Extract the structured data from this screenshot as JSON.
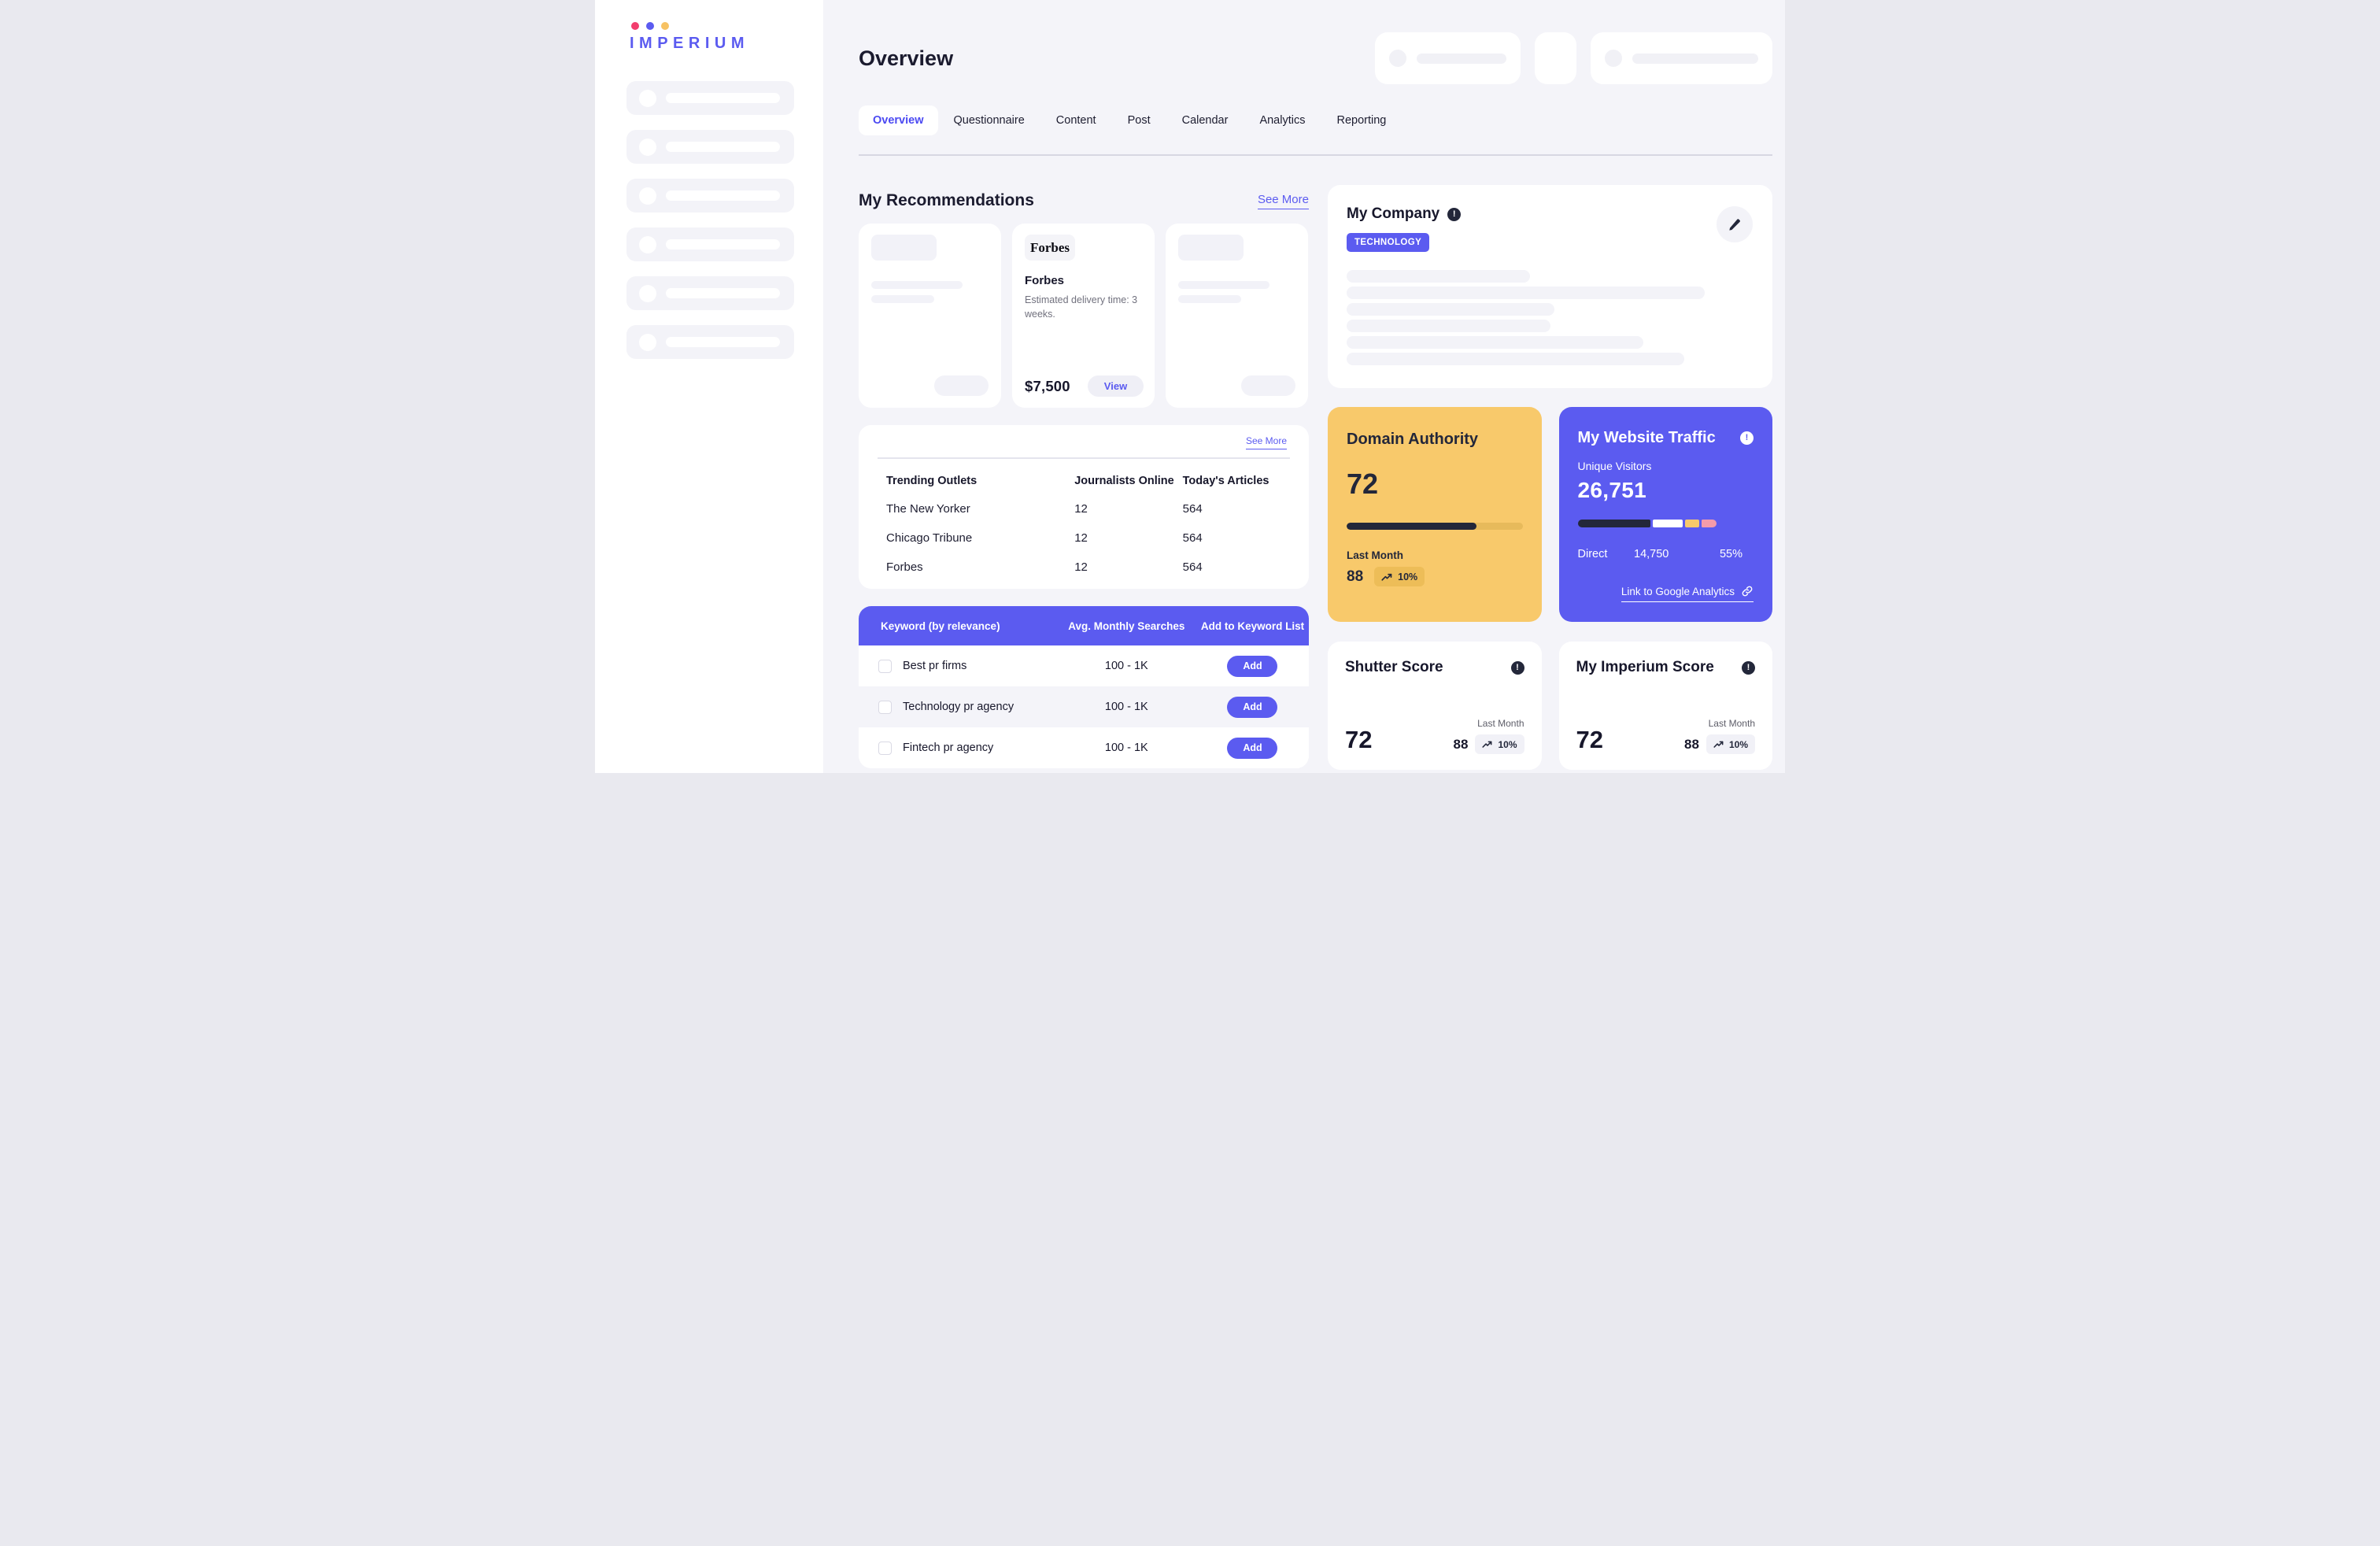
{
  "brand": {
    "name": "IMPERIUM"
  },
  "page": {
    "title": "Overview"
  },
  "tabs": [
    {
      "label": "Overview"
    },
    {
      "label": "Questionnaire"
    },
    {
      "label": "Content"
    },
    {
      "label": "Post"
    },
    {
      "label": "Calendar"
    },
    {
      "label": "Analytics"
    },
    {
      "label": "Reporting"
    }
  ],
  "icons": {
    "info": "!"
  },
  "recommendations": {
    "title": "My Recommendations",
    "see_more": "See More",
    "forbes": {
      "logo": "Forbes",
      "name": "Forbes",
      "description": "Estimated delivery time: 3 weeks.",
      "price": "$7,500",
      "view": "View"
    }
  },
  "trending": {
    "see_more": "See More",
    "columns": [
      "Trending Outlets",
      "Journalists Online",
      "Today's Articles"
    ],
    "rows": [
      [
        "The New Yorker",
        "12",
        "564"
      ],
      [
        "Chicago Tribune",
        "12",
        "564"
      ],
      [
        "Forbes",
        "12",
        "564"
      ]
    ]
  },
  "keywords": {
    "columns": [
      "Keyword (by relevance)",
      "Avg. Monthly Searches",
      "Add to Keyword List"
    ],
    "add": "Add",
    "rows": [
      {
        "keyword": "Best pr firms",
        "searches": "100 - 1K"
      },
      {
        "keyword": "Technology pr agency",
        "searches": "100 - 1K"
      },
      {
        "keyword": "Fintech pr agency",
        "searches": "100 - 1K"
      }
    ]
  },
  "company": {
    "title": "My Company",
    "category": "TECHNOLOGY"
  },
  "domain_authority": {
    "title": "Domain Authority",
    "score": "72",
    "progress_pct": 74,
    "last_month_label": "Last Month",
    "last_month_value": "88",
    "change": "10%"
  },
  "website_traffic": {
    "title": "My Website Traffic",
    "visitors_label": "Unique Visitors",
    "visitors": "26,751",
    "segments_pct": [
      53,
      22,
      10,
      11
    ],
    "direct_label": "Direct",
    "direct_value": "14,750",
    "direct_pct": "55%",
    "link_label": "Link to Google Analytics"
  },
  "shutter_score": {
    "title": "Shutter Score",
    "score": "72",
    "last_month_label": "Last Month",
    "last_month_value": "88",
    "change": "10%"
  },
  "imperium_score": {
    "title": "My Imperium Score",
    "score": "72",
    "last_month_label": "Last Month",
    "last_month_value": "88",
    "change": "10%"
  },
  "colors": {
    "primary": "#5b5bf0",
    "yellow_card": "#f8c96b",
    "navy": "#23273a",
    "pink_segment": "#f49bab",
    "logo_dot_pink": "#f23d6d",
    "logo_dot_blue": "#5b5bf0",
    "logo_dot_yellow": "#f7c263"
  }
}
